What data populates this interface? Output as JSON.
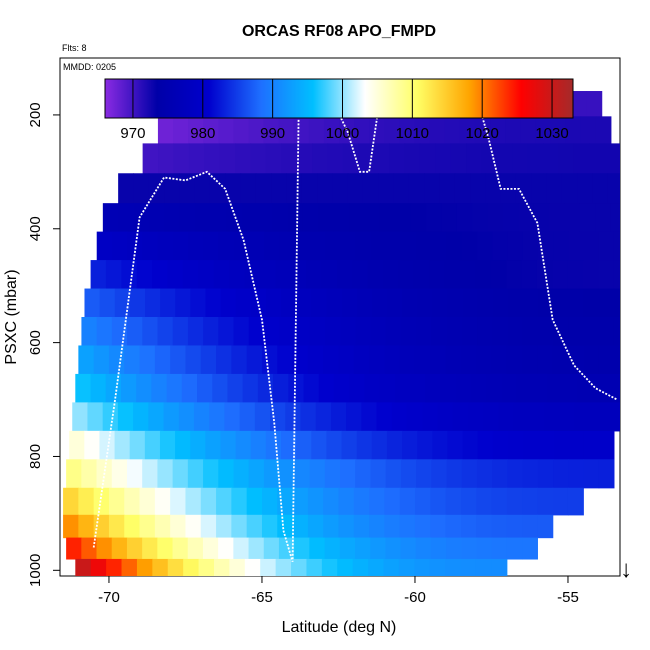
{
  "chart_data": {
    "type": "heatmap",
    "title": "ORCAS RF08 APO_FMPD",
    "flights_note": "Flts: 8",
    "date_note": "MMDD: 0205",
    "xlabel": "Latitude (deg N)",
    "ylabel": "PSXC (mbar)",
    "xlim": [
      -71.6,
      -53.3
    ],
    "ylim": [
      1010,
      100
    ],
    "y_reversed": true,
    "x_ticks": [
      -70,
      -65,
      -60,
      -55
    ],
    "y_ticks": [
      200,
      400,
      600,
      800,
      1000
    ],
    "colorbar": {
      "range": [
        966,
        1033
      ],
      "ticks": [
        970,
        980,
        990,
        1000,
        1010,
        1020,
        1030
      ],
      "stops": [
        "#8a2be2",
        "#0000a8",
        "#0000cd",
        "#1e6fff",
        "#00bfff",
        "#ffffff",
        "#ffff66",
        "#ffa500",
        "#ff0000",
        "#a52a2a"
      ]
    },
    "surface_marker": {
      "symbol": "↓",
      "x": -53.1
    },
    "grid": false,
    "legend": "none",
    "field": {
      "pressure_levels": [
        180,
        225,
        275,
        330,
        380,
        430,
        480,
        530,
        580,
        630,
        680,
        730,
        780,
        830,
        880,
        925,
        960,
        1000
      ],
      "rows": [
        {
          "p": 180,
          "lat_start": -67.9,
          "lat_end": -53.9,
          "v0": 967.0,
          "v1": 970.5
        },
        {
          "p": 225,
          "lat_start": -68.4,
          "lat_end": -53.6,
          "v0": 967.5,
          "v1": 972.0
        },
        {
          "p": 275,
          "lat_start": -68.9,
          "lat_end": -53.3,
          "v0": 970.0,
          "v1": 972.5
        },
        {
          "p": 330,
          "lat_start": -69.7,
          "lat_end": -53.2,
          "v0": 973.0,
          "v1": 973.0
        },
        {
          "p": 380,
          "lat_start": -70.2,
          "lat_end": -53.1,
          "v0": 976.0,
          "v1": 973.0
        },
        {
          "p": 430,
          "lat_start": -70.4,
          "lat_end": -53.0,
          "v0": 979.0,
          "v1": 973.0
        },
        {
          "p": 480,
          "lat_start": -70.6,
          "lat_end": -53.0,
          "v0": 983.0,
          "v1": 973.0
        },
        {
          "p": 530,
          "lat_start": -70.8,
          "lat_end": -53.0,
          "v0": 987.0,
          "v1": 973.5
        },
        {
          "p": 580,
          "lat_start": -70.9,
          "lat_end": -53.0,
          "v0": 990.0,
          "v1": 974.0
        },
        {
          "p": 630,
          "lat_start": -71.0,
          "lat_end": -53.0,
          "v0": 993.0,
          "v1": 974.5
        },
        {
          "p": 680,
          "lat_start": -71.1,
          "lat_end": -53.2,
          "v0": 996.0,
          "v1": 975.5
        },
        {
          "p": 730,
          "lat_start": -71.2,
          "lat_end": -53.3,
          "v0": 1000.0,
          "v1": 977.5
        },
        {
          "p": 780,
          "lat_start": -71.3,
          "lat_end": -53.5,
          "v0": 1005.0,
          "v1": 980.0
        },
        {
          "p": 830,
          "lat_start": -71.4,
          "lat_end": -53.5,
          "v0": 1009.0,
          "v1": 983.0
        },
        {
          "p": 880,
          "lat_start": -71.5,
          "lat_end": -54.5,
          "v0": 1014.0,
          "v1": 985.0
        },
        {
          "p": 925,
          "lat_start": -71.5,
          "lat_end": -55.5,
          "v0": 1019.0,
          "v1": 987.0
        },
        {
          "p": 960,
          "lat_start": -71.4,
          "lat_end": -56.0,
          "v0": 1024.0,
          "v1": 989.0
        },
        {
          "p": 1000,
          "lat_start": -71.1,
          "lat_end": -57.0,
          "v0": 1030.0,
          "v1": 991.0
        }
      ]
    },
    "flight_track": {
      "lat": [
        -70.5,
        -69.8,
        -69.0,
        -68.2,
        -67.5,
        -66.8,
        -66.2,
        -65.6,
        -65.0,
        -64.6,
        -64.3,
        -64.0,
        -63.8,
        -63.5,
        -63.0,
        -62.6,
        -62.2,
        -61.8,
        -61.5,
        -61.2,
        -60.8,
        -60.3,
        -59.9,
        -59.6,
        -59.2,
        -58.8,
        -58.4,
        -58.1,
        -57.9,
        -57.6,
        -57.2,
        -56.6,
        -56.0,
        -55.5,
        -54.8,
        -54.1,
        -53.4
      ],
      "psxc": [
        960,
        700,
        380,
        310,
        315,
        300,
        330,
        420,
        560,
        740,
        930,
        985,
        190,
        185,
        185,
        185,
        230,
        300,
        300,
        190,
        185,
        185,
        185,
        185,
        185,
        185,
        185,
        185,
        185,
        240,
        330,
        330,
        390,
        560,
        640,
        680,
        700
      ]
    }
  }
}
